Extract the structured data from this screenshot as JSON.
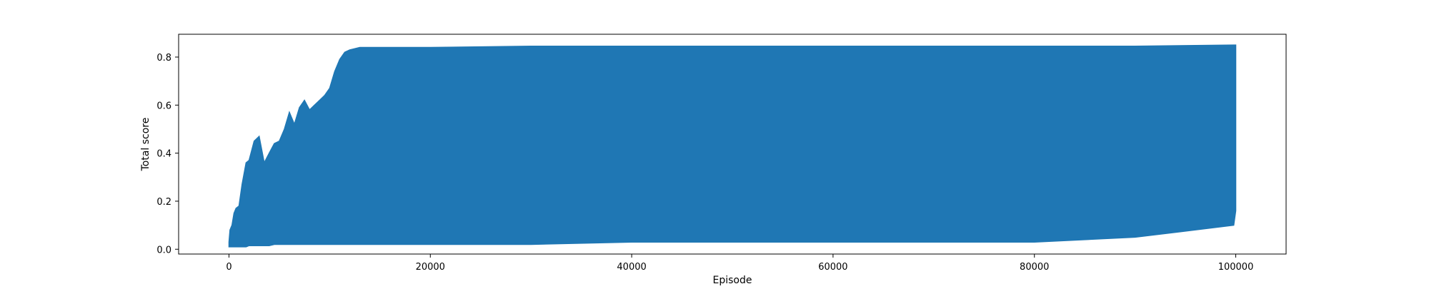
{
  "chart_data": {
    "type": "line",
    "title": "",
    "xlabel": "Episode",
    "ylabel": "Total score",
    "xlim": [
      -5000,
      105000
    ],
    "ylim": [
      -0.02,
      0.895
    ],
    "xticks": [
      0,
      20000,
      40000,
      60000,
      80000,
      100000
    ],
    "xtick_labels": [
      "0",
      "20000",
      "40000",
      "60000",
      "80000",
      "100000"
    ],
    "yticks": [
      0.0,
      0.2,
      0.4,
      0.6,
      0.8
    ],
    "ytick_labels": [
      "0.0",
      "0.2",
      "0.4",
      "0.6",
      "0.8"
    ],
    "grid": false,
    "legend": "none",
    "series": [
      {
        "color": "#1f77b4",
        "envelope": {
          "x": [
            0,
            100,
            300,
            500,
            700,
            1000,
            1300,
            1700,
            2000,
            2500,
            3000,
            3500,
            4000,
            4500,
            5000,
            5500,
            6000,
            6500,
            7000,
            7500,
            8000,
            8500,
            9000,
            9500,
            10000,
            10500,
            11000,
            11500,
            12000,
            13000,
            14000,
            20000,
            30000,
            40000,
            50000,
            60000,
            70000,
            80000,
            90000,
            99800,
            100000
          ],
          "upper": [
            0.03,
            0.08,
            0.1,
            0.15,
            0.17,
            0.18,
            0.27,
            0.36,
            0.37,
            0.45,
            0.47,
            0.36,
            0.4,
            0.44,
            0.45,
            0.5,
            0.57,
            0.52,
            0.59,
            0.62,
            0.58,
            0.6,
            0.62,
            0.64,
            0.67,
            0.74,
            0.79,
            0.82,
            0.83,
            0.84,
            0.84,
            0.84,
            0.845,
            0.845,
            0.845,
            0.845,
            0.845,
            0.845,
            0.845,
            0.85,
            0.85
          ],
          "lower": [
            0.01,
            0.01,
            0.01,
            0.01,
            0.01,
            0.01,
            0.01,
            0.01,
            0.015,
            0.015,
            0.015,
            0.015,
            0.015,
            0.02,
            0.02,
            0.02,
            0.02,
            0.02,
            0.02,
            0.02,
            0.02,
            0.02,
            0.02,
            0.02,
            0.02,
            0.02,
            0.02,
            0.02,
            0.02,
            0.02,
            0.02,
            0.02,
            0.02,
            0.03,
            0.03,
            0.03,
            0.03,
            0.03,
            0.05,
            0.1,
            0.16
          ]
        }
      }
    ]
  }
}
